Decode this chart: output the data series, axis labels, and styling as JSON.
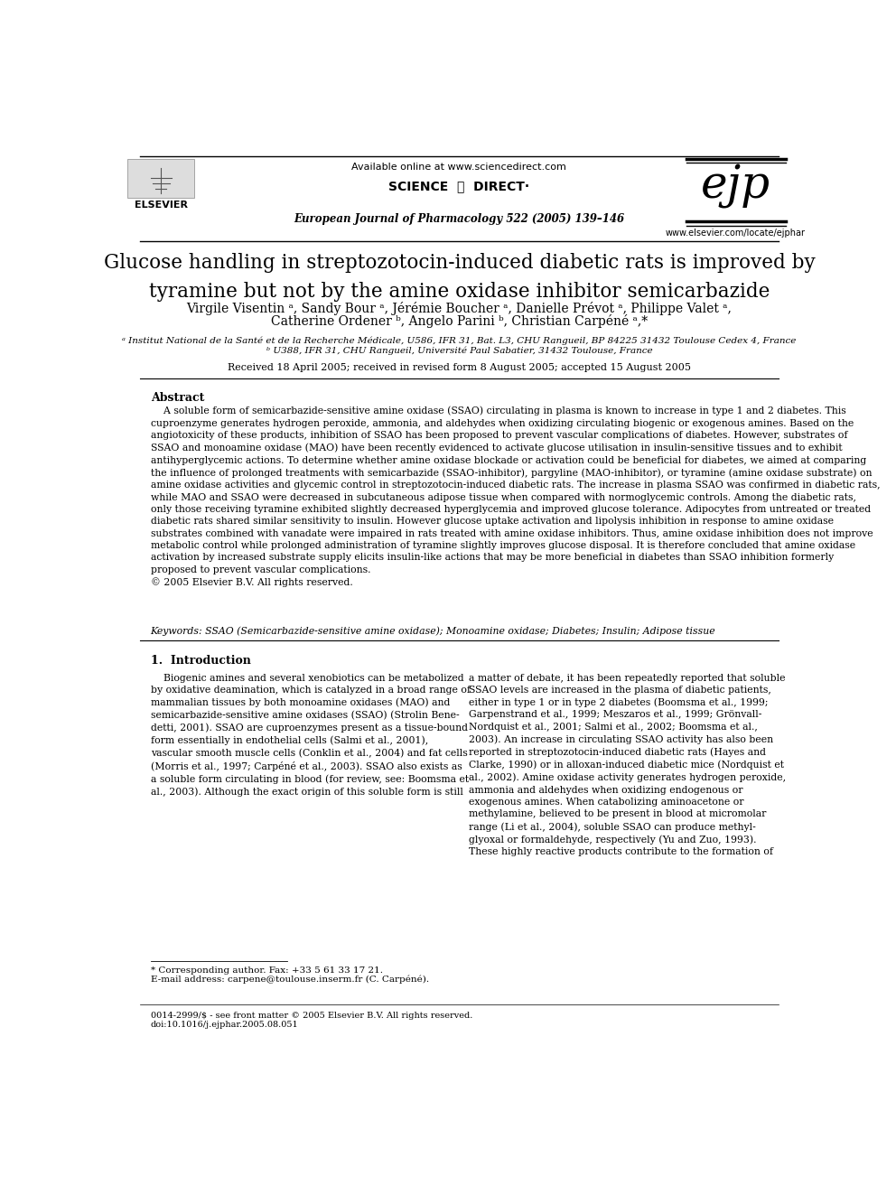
{
  "bg_color": "#ffffff",
  "available_online": "Available online at www.sciencedirect.com",
  "sciencedirect_text": "SCIENCE  ⓐ  DIRECT·",
  "journal_line": "European Journal of Pharmacology 522 (2005) 139–146",
  "ejp_url": "www.elsevier.com/locate/ejphar",
  "title": "Glucose handling in streptozotocin-induced diabetic rats is improved by\ntyramine but not by the amine oxidase inhibitor semicarbazide",
  "authors_line1": "Virgile Visentin ᵃ, Sandy Bour ᵃ, Jérémie Boucher ᵃ, Danielle Prévot ᵃ, Philippe Valet ᵃ,",
  "authors_line2": "Catherine Ordener ᵇ, Angelo Parini ᵇ, Christian Carpéné ᵃ,*",
  "affil_a": "ᵃ Institut National de la Santé et de la Recherche Médicale, U586, IFR 31, Bat. L3, CHU Rangueil, BP 84225 31432 Toulouse Cedex 4, France",
  "affil_b": "ᵇ U388, IFR 31, CHU Rangueil, Université Paul Sabatier, 31432 Toulouse, France",
  "received": "Received 18 April 2005; received in revised form 8 August 2005; accepted 15 August 2005",
  "abstract_title": "Abstract",
  "abstract_text": "    A soluble form of semicarbazide-sensitive amine oxidase (SSAO) circulating in plasma is known to increase in type 1 and 2 diabetes. This\ncuproenzyme generates hydrogen peroxide, ammonia, and aldehydes when oxidizing circulating biogenic or exogenous amines. Based on the\nangiotoxicity of these products, inhibition of SSAO has been proposed to prevent vascular complications of diabetes. However, substrates of\nSSAO and monoamine oxidase (MAO) have been recently evidenced to activate glucose utilisation in insulin-sensitive tissues and to exhibit\nantihyperglycemic actions. To determine whether amine oxidase blockade or activation could be beneficial for diabetes, we aimed at comparing\nthe influence of prolonged treatments with semicarbazide (SSAO-inhibitor), pargyline (MAO-inhibitor), or tyramine (amine oxidase substrate) on\namine oxidase activities and glycemic control in streptozotocin-induced diabetic rats. The increase in plasma SSAO was confirmed in diabetic rats,\nwhile MAO and SSAO were decreased in subcutaneous adipose tissue when compared with normoglycemic controls. Among the diabetic rats,\nonly those receiving tyramine exhibited slightly decreased hyperglycemia and improved glucose tolerance. Adipocytes from untreated or treated\ndiabetic rats shared similar sensitivity to insulin. However glucose uptake activation and lipolysis inhibition in response to amine oxidase\nsubstrates combined with vanadate were impaired in rats treated with amine oxidase inhibitors. Thus, amine oxidase inhibition does not improve\nmetabolic control while prolonged administration of tyramine slightly improves glucose disposal. It is therefore concluded that amine oxidase\nactivation by increased substrate supply elicits insulin-like actions that may be more beneficial in diabetes than SSAO inhibition formerly\nproposed to prevent vascular complications.\n© 2005 Elsevier B.V. All rights reserved.",
  "keywords": "Keywords: SSAO (Semicarbazide-sensitive amine oxidase); Monoamine oxidase; Diabetes; Insulin; Adipose tissue",
  "section1_title": "1.  Introduction",
  "col1_para": "    Biogenic amines and several xenobiotics can be metabolized\nby oxidative deamination, which is catalyzed in a broad range of\nmammalian tissues by both monoamine oxidases (MAO) and\nsemicarbazide-sensitive amine oxidases (SSAO) (Strolin Bene-\ndetti, 2001). SSAO are cuproenzymes present as a tissue-bound\nform essentially in endothelial cells (Salmi et al., 2001),\nvascular smooth muscle cells (Conklin et al., 2004) and fat cells\n(Morris et al., 1997; Carpéné et al., 2003). SSAO also exists as\na soluble form circulating in blood (for review, see: Boomsma et\nal., 2003). Although the exact origin of this soluble form is still",
  "col2_para": "a matter of debate, it has been repeatedly reported that soluble\nSSAO levels are increased in the plasma of diabetic patients,\neither in type 1 or in type 2 diabetes (Boomsma et al., 1999;\nGarpenstrand et al., 1999; Meszaros et al., 1999; Grönvall-\nNordquist et al., 2001; Salmi et al., 2002; Boomsma et al.,\n2003). An increase in circulating SSAO activity has also been\nreported in streptozotocin-induced diabetic rats (Hayes and\nClarke, 1990) or in alloxan-induced diabetic mice (Nordquist et\nal., 2002). Amine oxidase activity generates hydrogen peroxide,\nammonia and aldehydes when oxidizing endogenous or\nexogenous amines. When catabolizing aminoacetone or\nmethylamine, believed to be present in blood at micromolar\nrange (Li et al., 2004), soluble SSAO can produce methyl-\nglyoxal or formaldehyde, respectively (Yu and Zuo, 1993).\nThese highly reactive products contribute to the formation of",
  "footnote_star": "* Corresponding author. Fax: +33 5 61 33 17 21.",
  "footnote_email": "E-mail address: carpene@toulouse.inserm.fr (C. Carpéné).",
  "footer1": "0014-2999/$ - see front matter © 2005 Elsevier B.V. All rights reserved.",
  "footer2": "doi:10.1016/j.ejphar.2005.08.051"
}
